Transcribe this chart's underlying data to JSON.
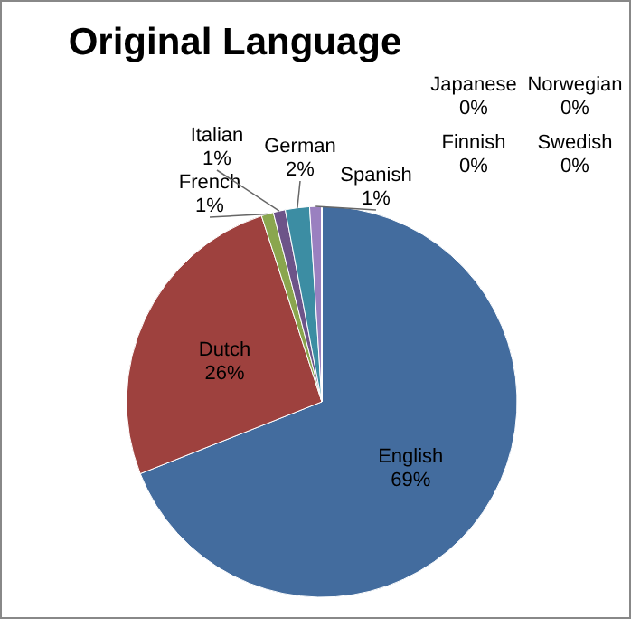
{
  "chart_data": {
    "type": "pie",
    "title": "Original Language",
    "categories": [
      "English",
      "Dutch",
      "French",
      "Italian",
      "German",
      "Spanish",
      "Japanese",
      "Norwegian",
      "Finnish",
      "Swedish"
    ],
    "values": [
      69,
      26,
      1,
      1,
      2,
      1,
      0,
      0,
      0,
      0
    ],
    "colors": [
      "#436c9e",
      "#9e413e",
      "#8aa64e",
      "#6d5489",
      "#3c8da3",
      "#9a80c0",
      "#e08a3c",
      "#7f9fd0",
      "#d08080",
      "#b0c880"
    ],
    "value_labels": [
      "69%",
      "26%",
      "1%",
      "1%",
      "2%",
      "1%",
      "0%",
      "0%",
      "0%",
      "0%"
    ],
    "legend": false
  }
}
